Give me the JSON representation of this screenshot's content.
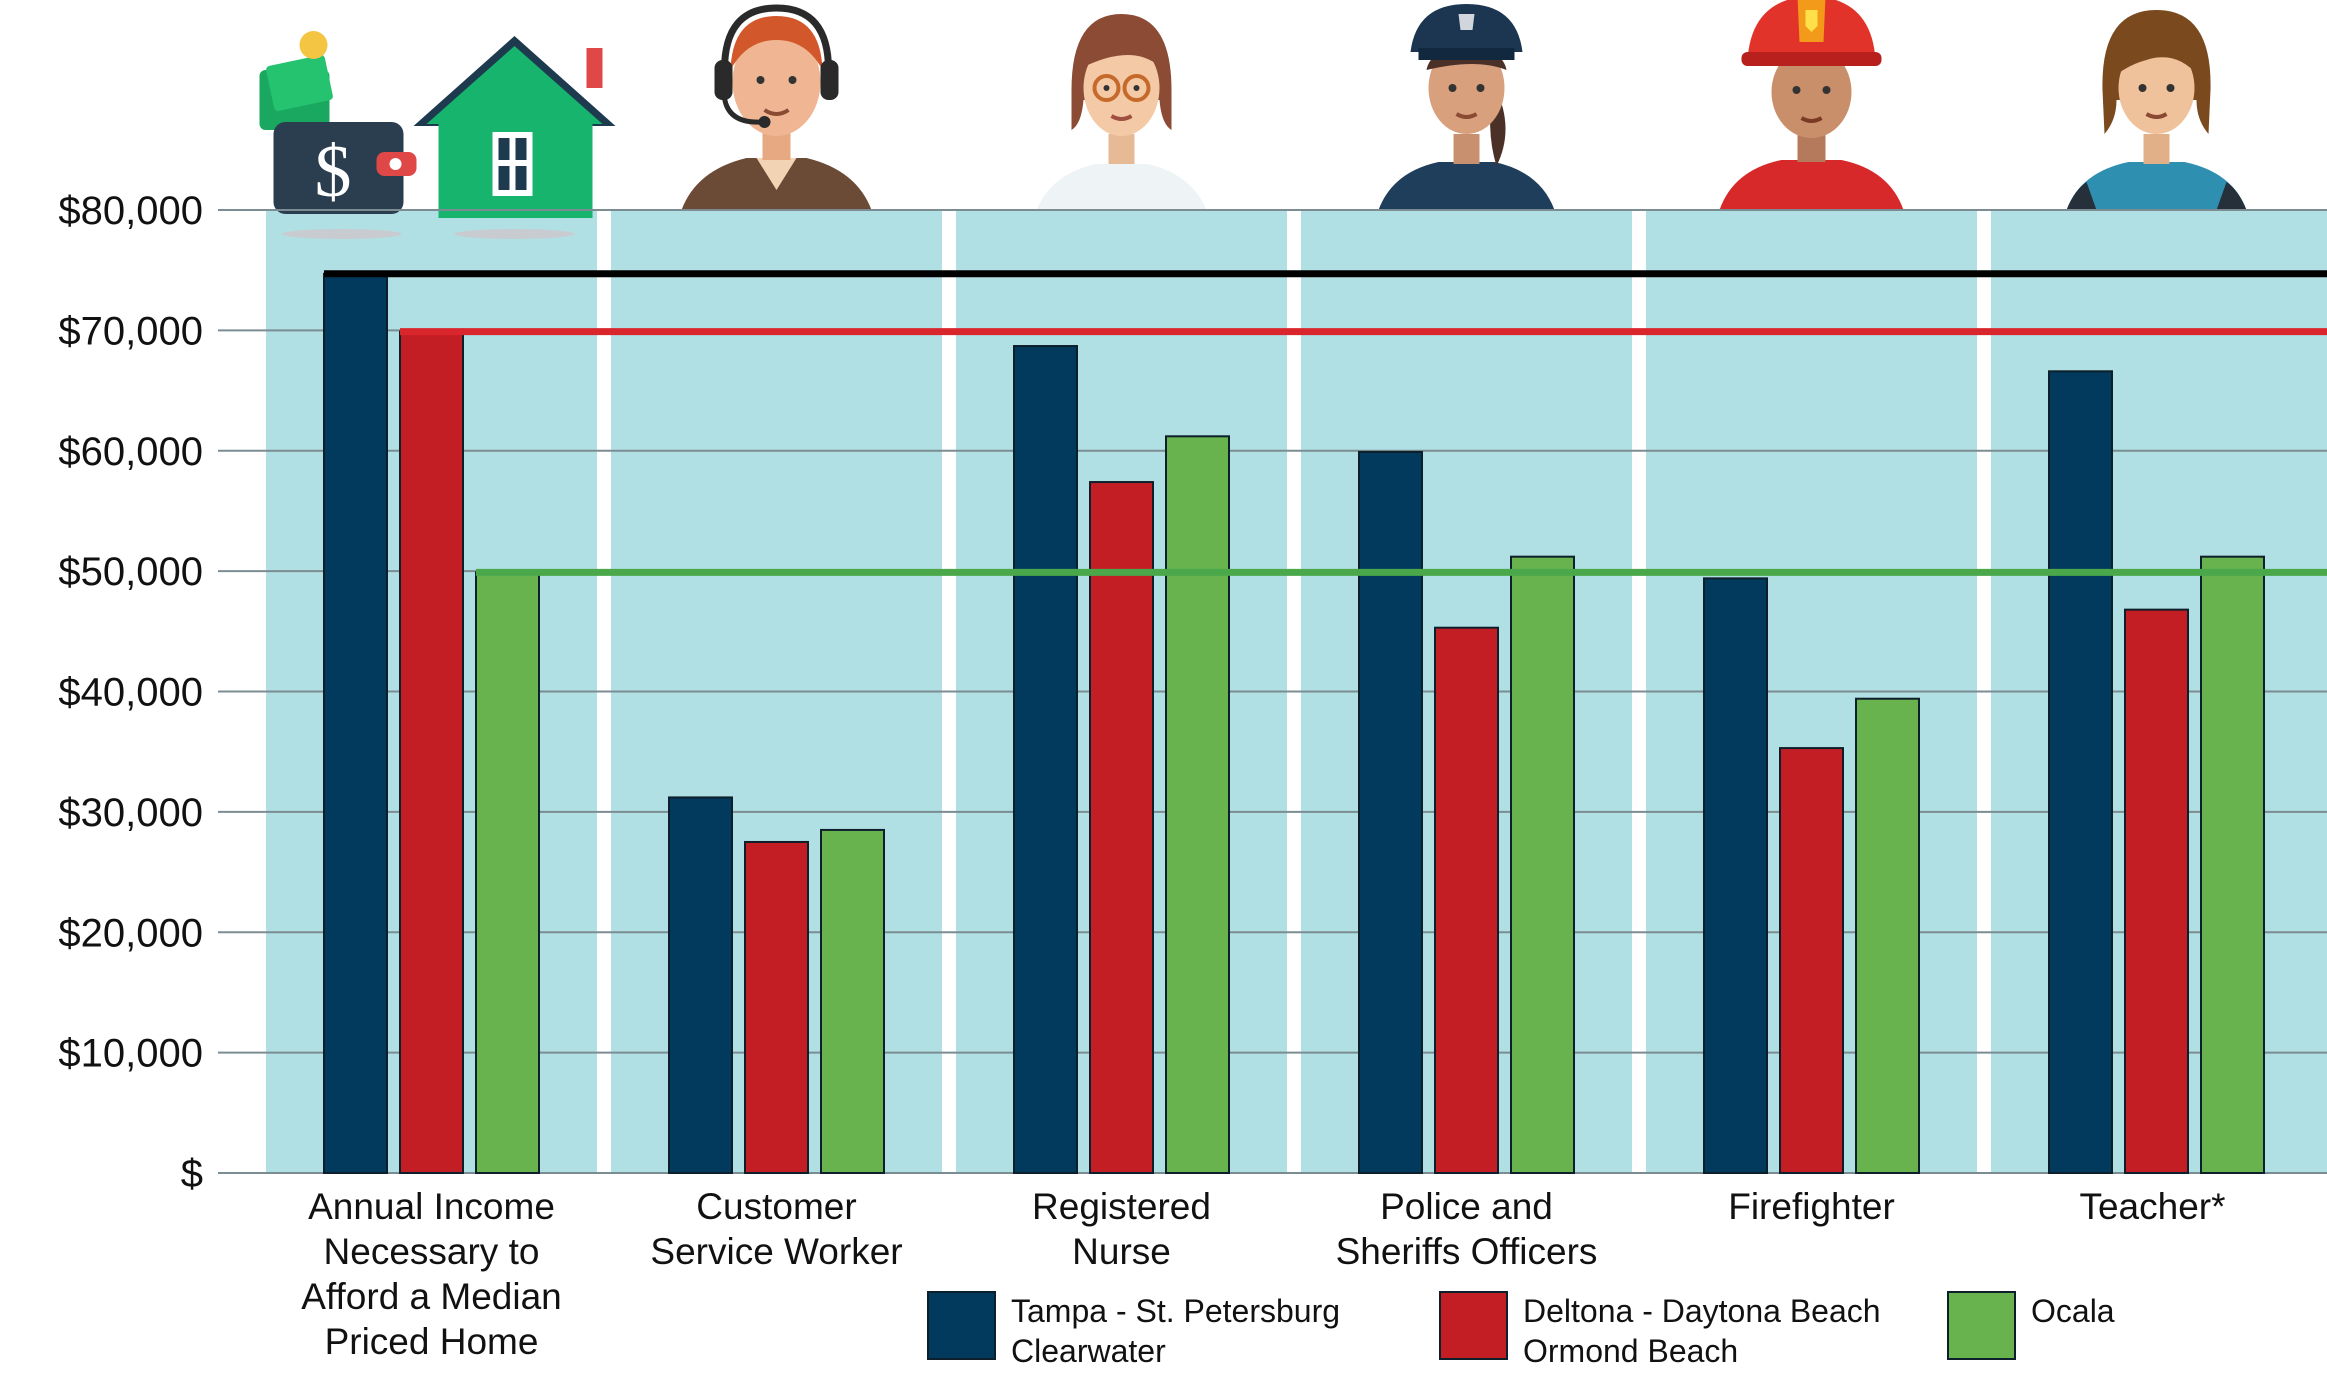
{
  "chart_data": {
    "type": "bar",
    "title": "",
    "xlabel": "",
    "ylabel": "",
    "ylim": [
      0,
      80000
    ],
    "y_ticks": [
      {
        "value": 0,
        "label": "$"
      },
      {
        "value": 10000,
        "label": "$10,000"
      },
      {
        "value": 20000,
        "label": "$20,000"
      },
      {
        "value": 30000,
        "label": "$30,000"
      },
      {
        "value": 40000,
        "label": "$40,000"
      },
      {
        "value": 50000,
        "label": "$50,000"
      },
      {
        "value": 60000,
        "label": "$60,000"
      },
      {
        "value": 70000,
        "label": "$70,000"
      },
      {
        "value": 80000,
        "label": "$80,000"
      }
    ],
    "grid": true,
    "legend_position": "bottom",
    "categories": [
      [
        "Annual Income",
        "Necessary to",
        "Afford a Median",
        "Priced Home"
      ],
      [
        "Customer",
        "Service Worker"
      ],
      [
        "Registered",
        "Nurse"
      ],
      [
        "Police and",
        "Sheriffs Officers"
      ],
      [
        "Firefighter"
      ],
      [
        "Teacher*"
      ]
    ],
    "category_icons": [
      "wallet-and-house-icon",
      "customer-service-agent-icon",
      "nurse-icon",
      "police-officer-icon",
      "firefighter-icon",
      "teacher-icon"
    ],
    "series": [
      {
        "name": [
          "Tampa - St. Petersburg",
          "Clearwater"
        ],
        "color": "#013a5c",
        "values": [
          74700,
          31200,
          68700,
          59900,
          49400,
          66600
        ]
      },
      {
        "name": [
          "Deltona - Daytona Beach",
          "Ormond Beach"
        ],
        "color": "#c41e25",
        "values": [
          69900,
          27500,
          57400,
          45300,
          35300,
          46800
        ]
      },
      {
        "name": [
          "Ocala"
        ],
        "color": "#68b34e",
        "values": [
          49900,
          28500,
          61200,
          51200,
          39400,
          51200
        ]
      }
    ],
    "reference_lines": [
      {
        "series": 0,
        "value": 74700,
        "color": "#000000",
        "start_category": 0
      },
      {
        "series": 1,
        "value": 69900,
        "color": "#d9262c",
        "start_category": 0
      },
      {
        "series": 2,
        "value": 49900,
        "color": "#4aa84a",
        "start_category": 0
      }
    ],
    "colors": {
      "panel": "#b0e0e4",
      "gridline": "#7b8d92",
      "axis": "#333333"
    }
  }
}
